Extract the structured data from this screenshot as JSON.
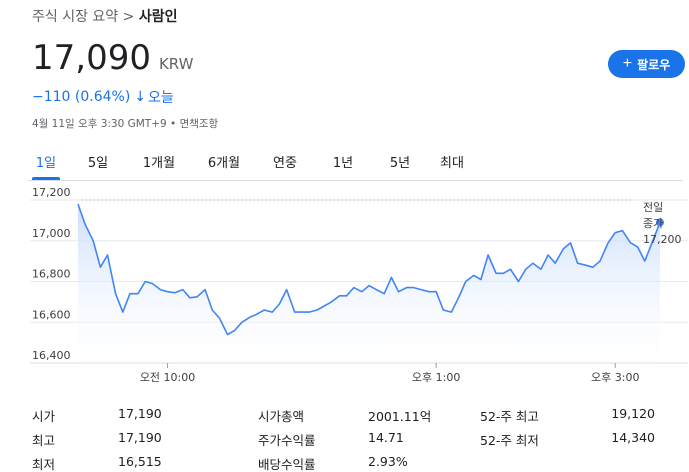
{
  "breadcrumb": {
    "prefix": "주식 시장 요약 > ",
    "current": "사람인"
  },
  "quote": {
    "price": "17,090",
    "currency": "KRW",
    "change": "−110 (0.64%)",
    "change_direction_icon": "arrow-down-icon",
    "period": "오늘",
    "timestamp": "4월 11일 오후 3:30 GMT+9 • 면책조항"
  },
  "follow_button": {
    "label": "팔로우",
    "icon": "plus-icon"
  },
  "tabs": [
    {
      "label": "1일",
      "active": true
    },
    {
      "label": "5일",
      "active": false
    },
    {
      "label": "1개월",
      "active": false
    },
    {
      "label": "6개월",
      "active": false
    },
    {
      "label": "연중",
      "active": false
    },
    {
      "label": "1년",
      "active": false
    },
    {
      "label": "5년",
      "active": false
    },
    {
      "label": "최대",
      "active": false
    }
  ],
  "colors": {
    "accent": "#1a73e8",
    "line": "#4285f4",
    "fill_top": "#c6dafc",
    "grid": "#e8eaed"
  },
  "chart_data": {
    "type": "area",
    "y_ticks": [
      "17,200",
      "17,000",
      "16,800",
      "16,600",
      "16,400"
    ],
    "y_tick_values": [
      17200,
      17000,
      16800,
      16600,
      16400
    ],
    "ylim": [
      16400,
      17200
    ],
    "x_ticks": [
      "오전 10:00",
      "오후 1:00",
      "오후 3:00"
    ],
    "x_tick_positions": [
      10.0,
      13.0,
      15.0
    ],
    "xlim": [
      9.0,
      15.5
    ],
    "previous_close": {
      "label_line1": "전일",
      "label_line2": "종가",
      "value_label": "17,200",
      "value": 17200
    },
    "grid": true,
    "series": [
      {
        "x": [
          9.0,
          9.08,
          9.17,
          9.25,
          9.33,
          9.42,
          9.5,
          9.58,
          9.67,
          9.75,
          9.83,
          9.92,
          10.0,
          10.08,
          10.17,
          10.25,
          10.33,
          10.42,
          10.5,
          10.58,
          10.67,
          10.75,
          10.83,
          10.92,
          11.0,
          11.08,
          11.17,
          11.25,
          11.33,
          11.42,
          11.5,
          11.58,
          11.67,
          11.75,
          11.83,
          11.92,
          12.0,
          12.08,
          12.17,
          12.25,
          12.33,
          12.42,
          12.5,
          12.58,
          12.67,
          12.75,
          12.83,
          12.92,
          13.0,
          13.08,
          13.17,
          13.25,
          13.33,
          13.42,
          13.5,
          13.58,
          13.67,
          13.75,
          13.83,
          13.92,
          14.0,
          14.08,
          14.17,
          14.25,
          14.33,
          14.42,
          14.5,
          14.58,
          14.67,
          14.75,
          14.83,
          14.92,
          15.0,
          15.08,
          15.17,
          15.25,
          15.33,
          15.42,
          15.5
        ],
        "y": [
          17180,
          17080,
          17000,
          16870,
          16930,
          16740,
          16650,
          16740,
          16740,
          16800,
          16790,
          16760,
          16750,
          16745,
          16760,
          16720,
          16725,
          16760,
          16660,
          16620,
          16540,
          16560,
          16600,
          16625,
          16640,
          16660,
          16650,
          16690,
          16760,
          16650,
          16650,
          16650,
          16660,
          16680,
          16700,
          16730,
          16730,
          16770,
          16750,
          16780,
          16760,
          16740,
          16820,
          16750,
          16770,
          16770,
          16760,
          16750,
          16750,
          16660,
          16650,
          16720,
          16800,
          16830,
          16810,
          16930,
          16840,
          16840,
          16860,
          16800,
          16860,
          16890,
          16860,
          16930,
          16890,
          16960,
          16990,
          16890,
          16880,
          16870,
          16900,
          16990,
          17040,
          17050,
          16990,
          16970,
          16900,
          17000,
          17090
        ]
      }
    ]
  },
  "stats": [
    {
      "l1": "시가",
      "v1": "17,190",
      "l2": "시가총액",
      "v2": "2001.11억",
      "l3": "52-주 최고",
      "v3": "19,120"
    },
    {
      "l1": "최고",
      "v1": "17,190",
      "l2": "주가수익률",
      "v2": "14.71",
      "l3": "52-주 최저",
      "v3": "14,340"
    },
    {
      "l1": "최저",
      "v1": "16,515",
      "l2": "배당수익률",
      "v2": "2.93%",
      "l3": "",
      "v3": ""
    }
  ]
}
